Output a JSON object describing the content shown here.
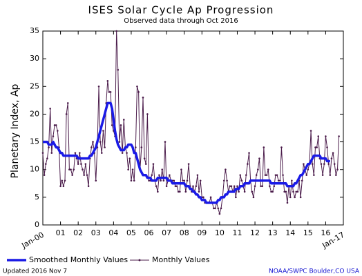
{
  "chart_data": {
    "type": "line",
    "title": "ISES Solar Cycle Ap Progression",
    "subtitle": "Observed data through Oct 2016",
    "y_label": "Planetary Index, Ap",
    "updated": "Updated 2016 Nov 7",
    "source": "NOAA/SWPC Boulder,CO USA",
    "xlim": [
      2000,
      2017
    ],
    "xticks": [
      {
        "value": 2000,
        "label": "Jan-00"
      },
      {
        "value": 2001,
        "label": "01"
      },
      {
        "value": 2002,
        "label": "02"
      },
      {
        "value": 2003,
        "label": "03"
      },
      {
        "value": 2004,
        "label": "04"
      },
      {
        "value": 2005,
        "label": "05"
      },
      {
        "value": 2006,
        "label": "06"
      },
      {
        "value": 2007,
        "label": "07"
      },
      {
        "value": 2008,
        "label": "08"
      },
      {
        "value": 2009,
        "label": "09"
      },
      {
        "value": 2010,
        "label": "10"
      },
      {
        "value": 2011,
        "label": "11"
      },
      {
        "value": 2012,
        "label": "12"
      },
      {
        "value": 2013,
        "label": "13"
      },
      {
        "value": 2014,
        "label": "14"
      },
      {
        "value": 2015,
        "label": "15"
      },
      {
        "value": 2016,
        "label": "16"
      },
      {
        "value": 2017,
        "label": "Jan-17"
      }
    ],
    "ylim": [
      0,
      35
    ],
    "yticks": [
      0,
      5,
      10,
      15,
      20,
      25,
      30,
      35
    ],
    "x": [
      2000,
      2000.083,
      2000.167,
      2000.25,
      2000.333,
      2000.417,
      2000.5,
      2000.583,
      2000.667,
      2000.75,
      2000.833,
      2000.917,
      2001,
      2001.083,
      2001.167,
      2001.25,
      2001.333,
      2001.417,
      2001.5,
      2001.583,
      2001.667,
      2001.75,
      2001.833,
      2001.917,
      2002,
      2002.083,
      2002.167,
      2002.25,
      2002.333,
      2002.417,
      2002.5,
      2002.583,
      2002.667,
      2002.75,
      2002.833,
      2002.917,
      2003,
      2003.083,
      2003.167,
      2003.25,
      2003.333,
      2003.417,
      2003.5,
      2003.583,
      2003.667,
      2003.75,
      2003.833,
      2003.917,
      2004,
      2004.083,
      2004.167,
      2004.25,
      2004.333,
      2004.417,
      2004.5,
      2004.583,
      2004.667,
      2004.75,
      2004.833,
      2004.917,
      2005,
      2005.083,
      2005.167,
      2005.25,
      2005.333,
      2005.417,
      2005.5,
      2005.583,
      2005.667,
      2005.75,
      2005.833,
      2005.917,
      2006,
      2006.083,
      2006.167,
      2006.25,
      2006.333,
      2006.417,
      2006.5,
      2006.583,
      2006.667,
      2006.75,
      2006.833,
      2006.917,
      2007,
      2007.083,
      2007.167,
      2007.25,
      2007.333,
      2007.417,
      2007.5,
      2007.583,
      2007.667,
      2007.75,
      2007.833,
      2007.917,
      2008,
      2008.083,
      2008.167,
      2008.25,
      2008.333,
      2008.417,
      2008.5,
      2008.583,
      2008.667,
      2008.75,
      2008.833,
      2008.917,
      2009,
      2009.083,
      2009.167,
      2009.25,
      2009.333,
      2009.417,
      2009.5,
      2009.583,
      2009.667,
      2009.75,
      2009.833,
      2009.917,
      2010,
      2010.083,
      2010.167,
      2010.25,
      2010.333,
      2010.417,
      2010.5,
      2010.583,
      2010.667,
      2010.75,
      2010.833,
      2010.917,
      2011,
      2011.083,
      2011.167,
      2011.25,
      2011.333,
      2011.417,
      2011.5,
      2011.583,
      2011.667,
      2011.75,
      2011.833,
      2011.917,
      2012,
      2012.083,
      2012.167,
      2012.25,
      2012.333,
      2012.417,
      2012.5,
      2012.583,
      2012.667,
      2012.75,
      2012.833,
      2012.917,
      2013,
      2013.083,
      2013.167,
      2013.25,
      2013.333,
      2013.417,
      2013.5,
      2013.583,
      2013.667,
      2013.75,
      2013.833,
      2013.917,
      2014,
      2014.083,
      2014.167,
      2014.25,
      2014.333,
      2014.417,
      2014.5,
      2014.583,
      2014.667,
      2014.75,
      2014.833,
      2014.917,
      2015,
      2015.083,
      2015.167,
      2015.25,
      2015.333,
      2015.417,
      2015.5,
      2015.583,
      2015.667,
      2015.75,
      2015.833,
      2015.917,
      2016,
      2016.083,
      2016.167,
      2016.25,
      2016.333,
      2016.417,
      2016.5,
      2016.583,
      2016.667,
      2016.75
    ],
    "series": [
      {
        "name": "Smoothed Monthly Values",
        "color": "#1a1ae6",
        "values": [
          15,
          15,
          15,
          15,
          14.5,
          14.5,
          14.5,
          15,
          14.5,
          14,
          14,
          13.5,
          13,
          13,
          12.5,
          12.5,
          12.5,
          12.5,
          12.5,
          12.5,
          12.5,
          12.5,
          12.5,
          12.5,
          12,
          12,
          12,
          12,
          12,
          12,
          12,
          12,
          12.5,
          12.5,
          13,
          13.5,
          14,
          15,
          16,
          17,
          18,
          19,
          20,
          21,
          22,
          22,
          22,
          21,
          19,
          17,
          15.5,
          14.5,
          14,
          13.5,
          13.5,
          13.5,
          14,
          14,
          14.5,
          14.5,
          14.5,
          14,
          13,
          13,
          12,
          11,
          10,
          9.5,
          9,
          9,
          9,
          8.5,
          8.5,
          8.5,
          8,
          8,
          8,
          8,
          8.5,
          8.5,
          8.5,
          8.5,
          8.5,
          8.5,
          8.5,
          8,
          8,
          8,
          7.5,
          7.5,
          7.5,
          7.5,
          7.5,
          7.5,
          7.5,
          7.5,
          7.5,
          7,
          7,
          7,
          6.5,
          6.5,
          6,
          6,
          5.5,
          5.5,
          5,
          5,
          4.5,
          4.5,
          4.5,
          4,
          4,
          4,
          4,
          4,
          4,
          4,
          4,
          4.5,
          4.5,
          5,
          5,
          5,
          5.5,
          5.5,
          6,
          6,
          6,
          6,
          6,
          6.5,
          6.5,
          6.5,
          7,
          7,
          7,
          7.5,
          7.5,
          7.5,
          7.5,
          8,
          8,
          8,
          8,
          8,
          8,
          8,
          8,
          8,
          8,
          8,
          8,
          8,
          8,
          7.5,
          7.5,
          7.5,
          7.5,
          7.5,
          7.5,
          7.5,
          7.5,
          7.5,
          7.5,
          7.5,
          7,
          7,
          7,
          7,
          7,
          7.5,
          7.5,
          8,
          8.5,
          9,
          9,
          9.5,
          10,
          10.5,
          11,
          11,
          11.5,
          12,
          12.5,
          12.5,
          12.5,
          12.5,
          12.5,
          12,
          12,
          12,
          12,
          11.5,
          11.5,
          11.5,
          null,
          null,
          null,
          null,
          null,
          null
        ]
      },
      {
        "name": "Monthly Values",
        "color": "#4b1c4b",
        "values": [
          13,
          9,
          11,
          12,
          14,
          21,
          13,
          16,
          18,
          18,
          17,
          14,
          7,
          8,
          7,
          8,
          20,
          22,
          10,
          10,
          9,
          10,
          13,
          12,
          11,
          13,
          11,
          10,
          9,
          11,
          9,
          7,
          12,
          14,
          15,
          13,
          8,
          14,
          25,
          15,
          13,
          17,
          14,
          22,
          26,
          24,
          24,
          18,
          17,
          16,
          35,
          28,
          15,
          18,
          13,
          19,
          14,
          13,
          10,
          12,
          8,
          10,
          8,
          14,
          25,
          24,
          10,
          14,
          23,
          12,
          11,
          20,
          8,
          8,
          9,
          11,
          8,
          7,
          6,
          9,
          8,
          10,
          8,
          15,
          7,
          8,
          9,
          8,
          8,
          8,
          7,
          7,
          6,
          6,
          10,
          8,
          8,
          6,
          8,
          11,
          7,
          6,
          7,
          6,
          7,
          9,
          6,
          8,
          5,
          5,
          4,
          4,
          4,
          4,
          5,
          4,
          3,
          3,
          4,
          3,
          2,
          3,
          5,
          8,
          10,
          8,
          6,
          7,
          7,
          6,
          7,
          5,
          7,
          6,
          9,
          8,
          7,
          6,
          9,
          11,
          13,
          8,
          6,
          5,
          7,
          9,
          10,
          12,
          7,
          7,
          14,
          9,
          9,
          10,
          7,
          6,
          6,
          7,
          9,
          9,
          8,
          8,
          14,
          9,
          6,
          6,
          4,
          7,
          5,
          8,
          6,
          5,
          6,
          6,
          8,
          5,
          8,
          11,
          10,
          9,
          10,
          11,
          17,
          11,
          9,
          14,
          14,
          16,
          12,
          11,
          9,
          11,
          16,
          14,
          11,
          9,
          12,
          13,
          11,
          9,
          10,
          16
        ]
      }
    ]
  }
}
